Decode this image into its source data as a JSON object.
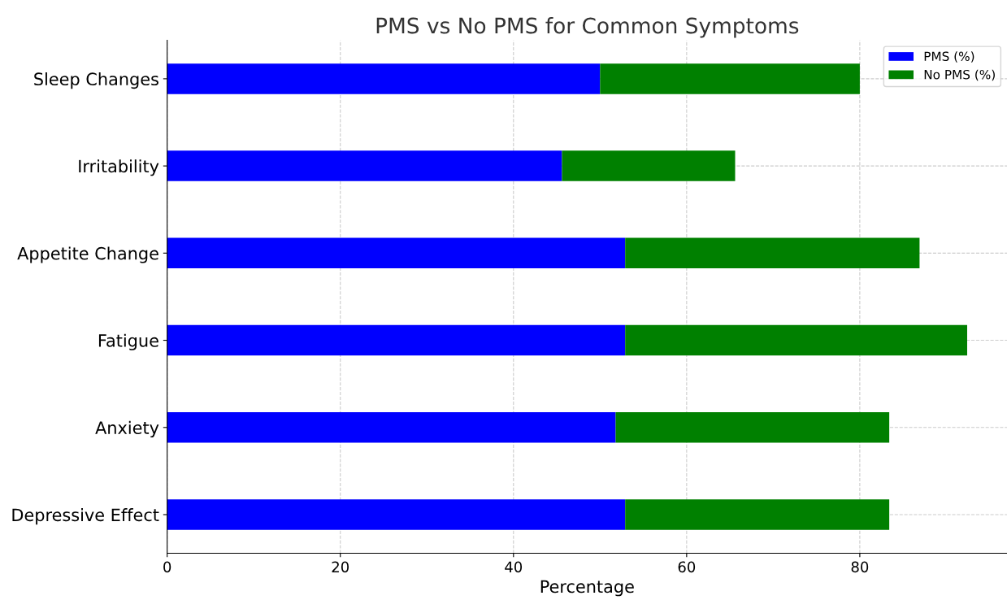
{
  "chart_data": {
    "type": "bar",
    "orientation": "horizontal",
    "stacked": true,
    "title": "PMS vs No PMS for Common Symptoms",
    "xlabel": "Percentage",
    "categories": [
      "Sleep Changes",
      "Irritability",
      "Appetite Change",
      "Fatigue",
      "Anxiety",
      "Depressive Effect"
    ],
    "series": [
      {
        "name": "PMS (%)",
        "color": "#0000ff",
        "values": [
          50,
          45.6,
          52.9,
          52.9,
          51.8,
          52.9
        ]
      },
      {
        "name": "No PMS (%)",
        "color": "#008000",
        "values": [
          30,
          20,
          34,
          39.5,
          31.6,
          30.5
        ]
      }
    ],
    "xlim": [
      0,
      97
    ],
    "xticks": [
      0,
      20,
      40,
      60,
      80
    ],
    "grid": true,
    "legend": "top right"
  }
}
